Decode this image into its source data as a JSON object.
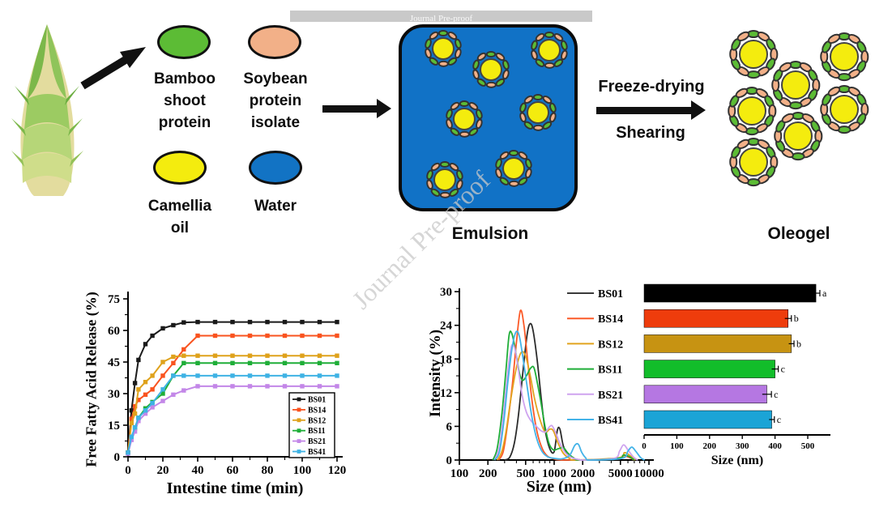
{
  "watermark": {
    "bar_text": "Journal Pre-proof",
    "diagonal_text": "Journal Pre-proof"
  },
  "diagram": {
    "ingredients": [
      {
        "name": "bamboo-shoot-protein",
        "lines": [
          "Bamboo",
          "shoot",
          "protein"
        ],
        "color": "#5cbc35"
      },
      {
        "name": "soybean-protein-isolate",
        "lines": [
          "Soybean",
          "protein",
          "isolate"
        ],
        "color": "#f2b088"
      },
      {
        "name": "camellia-oil",
        "lines": [
          "Camellia",
          "oil"
        ],
        "color": "#f4ec0e"
      },
      {
        "name": "water",
        "lines": [
          "Water"
        ],
        "color": "#1273c4"
      }
    ],
    "process": {
      "emulsion": "Emulsion",
      "freeze_drying": "Freeze-drying",
      "shearing": "Shearing",
      "oleogel": "Oleogel"
    },
    "colors": {
      "protein_green": "#5cbc35",
      "protein_salmon": "#f2b088",
      "oil_yellow": "#f4ec0e",
      "water_blue": "#1273c4",
      "emulsion_bg": "#1172c6"
    }
  },
  "chart_data": [
    {
      "id": "ffa",
      "type": "line",
      "xlabel": "Intestine time (min)",
      "ylabel": "Free Fatty Acid Release (%)",
      "xlim": [
        0,
        122
      ],
      "ylim": [
        0,
        78
      ],
      "xticks": [
        0,
        20,
        40,
        60,
        80,
        100,
        120
      ],
      "yticks": [
        0,
        15,
        30,
        45,
        60,
        75
      ],
      "grid": false,
      "legend_position": "lower right",
      "marker": "square",
      "x": [
        0,
        2,
        4,
        6,
        10,
        14,
        20,
        26,
        32,
        40,
        50,
        60,
        70,
        80,
        90,
        100,
        110,
        120
      ],
      "series": [
        {
          "name": "BS01",
          "color": "#1a1a1a",
          "values": [
            2,
            22,
            35,
            46,
            53.5,
            57.5,
            61,
            62.5,
            63.8,
            64,
            64,
            64,
            64,
            64,
            64,
            64,
            64,
            64
          ]
        },
        {
          "name": "BS14",
          "color": "#f9531f",
          "values": [
            2,
            18,
            24,
            27,
            29.5,
            32,
            38.5,
            44.5,
            51,
            57.5,
            57.5,
            57.5,
            57.5,
            57.5,
            57.5,
            57.5,
            57.5,
            57.5
          ]
        },
        {
          "name": "BS12",
          "color": "#dfa21c",
          "values": [
            2,
            16,
            20.5,
            32,
            35.5,
            38.5,
            45,
            47.5,
            48,
            48,
            48,
            48,
            48,
            48,
            48,
            48,
            48,
            48
          ]
        },
        {
          "name": "BS11",
          "color": "#1fae38",
          "values": [
            2,
            9,
            13.5,
            18.5,
            23,
            26,
            30,
            38.5,
            44.5,
            44.5,
            44.5,
            44.5,
            44.5,
            44.5,
            44.5,
            44.5,
            44.5,
            44.5
          ]
        },
        {
          "name": "BS21",
          "color": "#c387e8",
          "values": [
            1.5,
            8,
            12,
            17,
            20.5,
            23.5,
            26.5,
            29.5,
            31.5,
            33.5,
            33.5,
            33.5,
            33.5,
            33.5,
            33.5,
            33.5,
            33.5,
            33.5
          ]
        },
        {
          "name": "BS41",
          "color": "#3eb2e4",
          "values": [
            2,
            9.5,
            14,
            18.5,
            22,
            25.5,
            32,
            38.5,
            38.5,
            38.5,
            38.5,
            38.5,
            38.5,
            38.5,
            38.5,
            38.5,
            38.5,
            38.5
          ]
        }
      ]
    },
    {
      "id": "dls",
      "type": "line",
      "xlabel": "Size (nm)",
      "ylabel": "Intensity (%)",
      "xscale": "log",
      "xlim": [
        100,
        10000
      ],
      "ylim": [
        0,
        30
      ],
      "xticks": [
        100,
        200,
        500,
        1000,
        2000,
        5000,
        10000
      ],
      "yticks": [
        0,
        6,
        12,
        18,
        24,
        30
      ],
      "grid": false,
      "series": [
        {
          "name": "BS01",
          "color": "#2b2b2b",
          "points": [
            [
              300,
              0
            ],
            [
              340,
              0.5
            ],
            [
              380,
              3
            ],
            [
              420,
              8
            ],
            [
              470,
              16
            ],
            [
              520,
              22.5
            ],
            [
              560,
              24.3
            ],
            [
              600,
              23
            ],
            [
              660,
              18
            ],
            [
              730,
              11
            ],
            [
              800,
              5.5
            ],
            [
              900,
              2
            ],
            [
              1000,
              1.5
            ],
            [
              1080,
              5.3
            ],
            [
              1150,
              5.5
            ],
            [
              1250,
              2.5
            ],
            [
              1400,
              1
            ],
            [
              1600,
              0.3
            ],
            [
              1900,
              0
            ]
          ]
        },
        {
          "name": "BS14",
          "color": "#fb5a28",
          "points": [
            [
              260,
              0
            ],
            [
              290,
              1.5
            ],
            [
              320,
              6
            ],
            [
              360,
              13
            ],
            [
              400,
              21
            ],
            [
              440,
              26.6
            ],
            [
              480,
              24
            ],
            [
              530,
              17
            ],
            [
              590,
              10
            ],
            [
              660,
              5
            ],
            [
              750,
              2
            ],
            [
              850,
              0.7
            ],
            [
              1000,
              0.2
            ],
            [
              1300,
              0
            ],
            [
              4600,
              0.2
            ],
            [
              5300,
              0.8
            ],
            [
              6100,
              0.5
            ],
            [
              7000,
              0
            ]
          ]
        },
        {
          "name": "BS12",
          "color": "#e2a41f",
          "points": [
            [
              250,
              0
            ],
            [
              280,
              1.5
            ],
            [
              310,
              5
            ],
            [
              350,
              11
            ],
            [
              400,
              16.5
            ],
            [
              450,
              19.2
            ],
            [
              500,
              18.5
            ],
            [
              560,
              15
            ],
            [
              620,
              11
            ],
            [
              700,
              7.5
            ],
            [
              800,
              5
            ],
            [
              900,
              5.5
            ],
            [
              980,
              5.2
            ],
            [
              1100,
              3
            ],
            [
              1250,
              1.2
            ],
            [
              1450,
              0.3
            ],
            [
              1700,
              0
            ],
            [
              4800,
              0.4
            ],
            [
              5500,
              1.3
            ],
            [
              6300,
              0.8
            ],
            [
              7200,
              0
            ]
          ]
        },
        {
          "name": "BS11",
          "color": "#1fae38",
          "points": [
            [
              225,
              0
            ],
            [
              250,
              2
            ],
            [
              280,
              8
            ],
            [
              310,
              16
            ],
            [
              335,
              22.3
            ],
            [
              360,
              22.4
            ],
            [
              395,
              19
            ],
            [
              430,
              15.5
            ],
            [
              465,
              14.2
            ],
            [
              510,
              15
            ],
            [
              560,
              16.3
            ],
            [
              610,
              16.5
            ],
            [
              660,
              14
            ],
            [
              730,
              10
            ],
            [
              800,
              6
            ],
            [
              880,
              3
            ],
            [
              980,
              1.8
            ],
            [
              1100,
              2
            ],
            [
              1250,
              2.2
            ],
            [
              1400,
              1.2
            ],
            [
              1600,
              0.4
            ],
            [
              1900,
              0
            ],
            [
              4700,
              0.3
            ],
            [
              5400,
              0.9
            ],
            [
              6200,
              0.6
            ],
            [
              7000,
              0
            ]
          ]
        },
        {
          "name": "BS21",
          "color": "#cfa3ef",
          "points": [
            [
              235,
              0
            ],
            [
              265,
              2.5
            ],
            [
              295,
              9
            ],
            [
              325,
              16
            ],
            [
              355,
              20.3
            ],
            [
              385,
              19.8
            ],
            [
              420,
              16
            ],
            [
              460,
              11.5
            ],
            [
              510,
              8.5
            ],
            [
              570,
              7
            ],
            [
              650,
              6
            ],
            [
              730,
              5.2
            ],
            [
              810,
              5
            ],
            [
              890,
              5.9
            ],
            [
              950,
              6.1
            ],
            [
              1030,
              5
            ],
            [
              1150,
              3
            ],
            [
              1300,
              1.4
            ],
            [
              1500,
              0.5
            ],
            [
              1800,
              0.1
            ],
            [
              2100,
              0
            ],
            [
              4300,
              0.3
            ],
            [
              4900,
              1.6
            ],
            [
              5400,
              2.7
            ],
            [
              6000,
              1.8
            ],
            [
              6800,
              0.6
            ],
            [
              7600,
              0
            ]
          ]
        },
        {
          "name": "BS41",
          "color": "#44b3e8",
          "points": [
            [
              235,
              0
            ],
            [
              265,
              1.5
            ],
            [
              295,
              7
            ],
            [
              325,
              14
            ],
            [
              360,
              20
            ],
            [
              395,
              22.8
            ],
            [
              430,
              22
            ],
            [
              475,
              17.5
            ],
            [
              525,
              12.5
            ],
            [
              585,
              7.5
            ],
            [
              655,
              3.8
            ],
            [
              740,
              1.6
            ],
            [
              850,
              0.6
            ],
            [
              1000,
              0.3
            ],
            [
              1200,
              0.2
            ],
            [
              1450,
              0.8
            ],
            [
              1650,
              2.6
            ],
            [
              1800,
              2.8
            ],
            [
              1950,
              1.4
            ],
            [
              2150,
              0.4
            ],
            [
              2400,
              0
            ],
            [
              5200,
              0.3
            ],
            [
              6000,
              1.6
            ],
            [
              6600,
              2.3
            ],
            [
              7300,
              1.5
            ],
            [
              8200,
              0.4
            ],
            [
              9000,
              0
            ]
          ]
        }
      ]
    },
    {
      "id": "size-bar",
      "type": "bar",
      "orientation": "horizontal",
      "xlabel": "Size (nm)",
      "categories": [
        "BS01",
        "BS14",
        "BS12",
        "BS11",
        "BS21",
        "BS41"
      ],
      "values": [
        525,
        440,
        450,
        400,
        375,
        390
      ],
      "errors": [
        12,
        10,
        8,
        10,
        14,
        8
      ],
      "sig_letters": [
        "a",
        "b",
        "b",
        "c",
        "c",
        "c"
      ],
      "bar_colors": [
        "#000000",
        "#ee3c0c",
        "#c79312",
        "#12bd2a",
        "#b577e2",
        "#1ba4d6"
      ],
      "legend_line_colors": [
        "#3a3a3a",
        "#fb5a28",
        "#e2a41f",
        "#1fae38",
        "#cfa3ef",
        "#44b3e8"
      ],
      "xticks": [
        0,
        100,
        200,
        300,
        400,
        500
      ],
      "xlim": [
        0,
        560
      ]
    }
  ]
}
